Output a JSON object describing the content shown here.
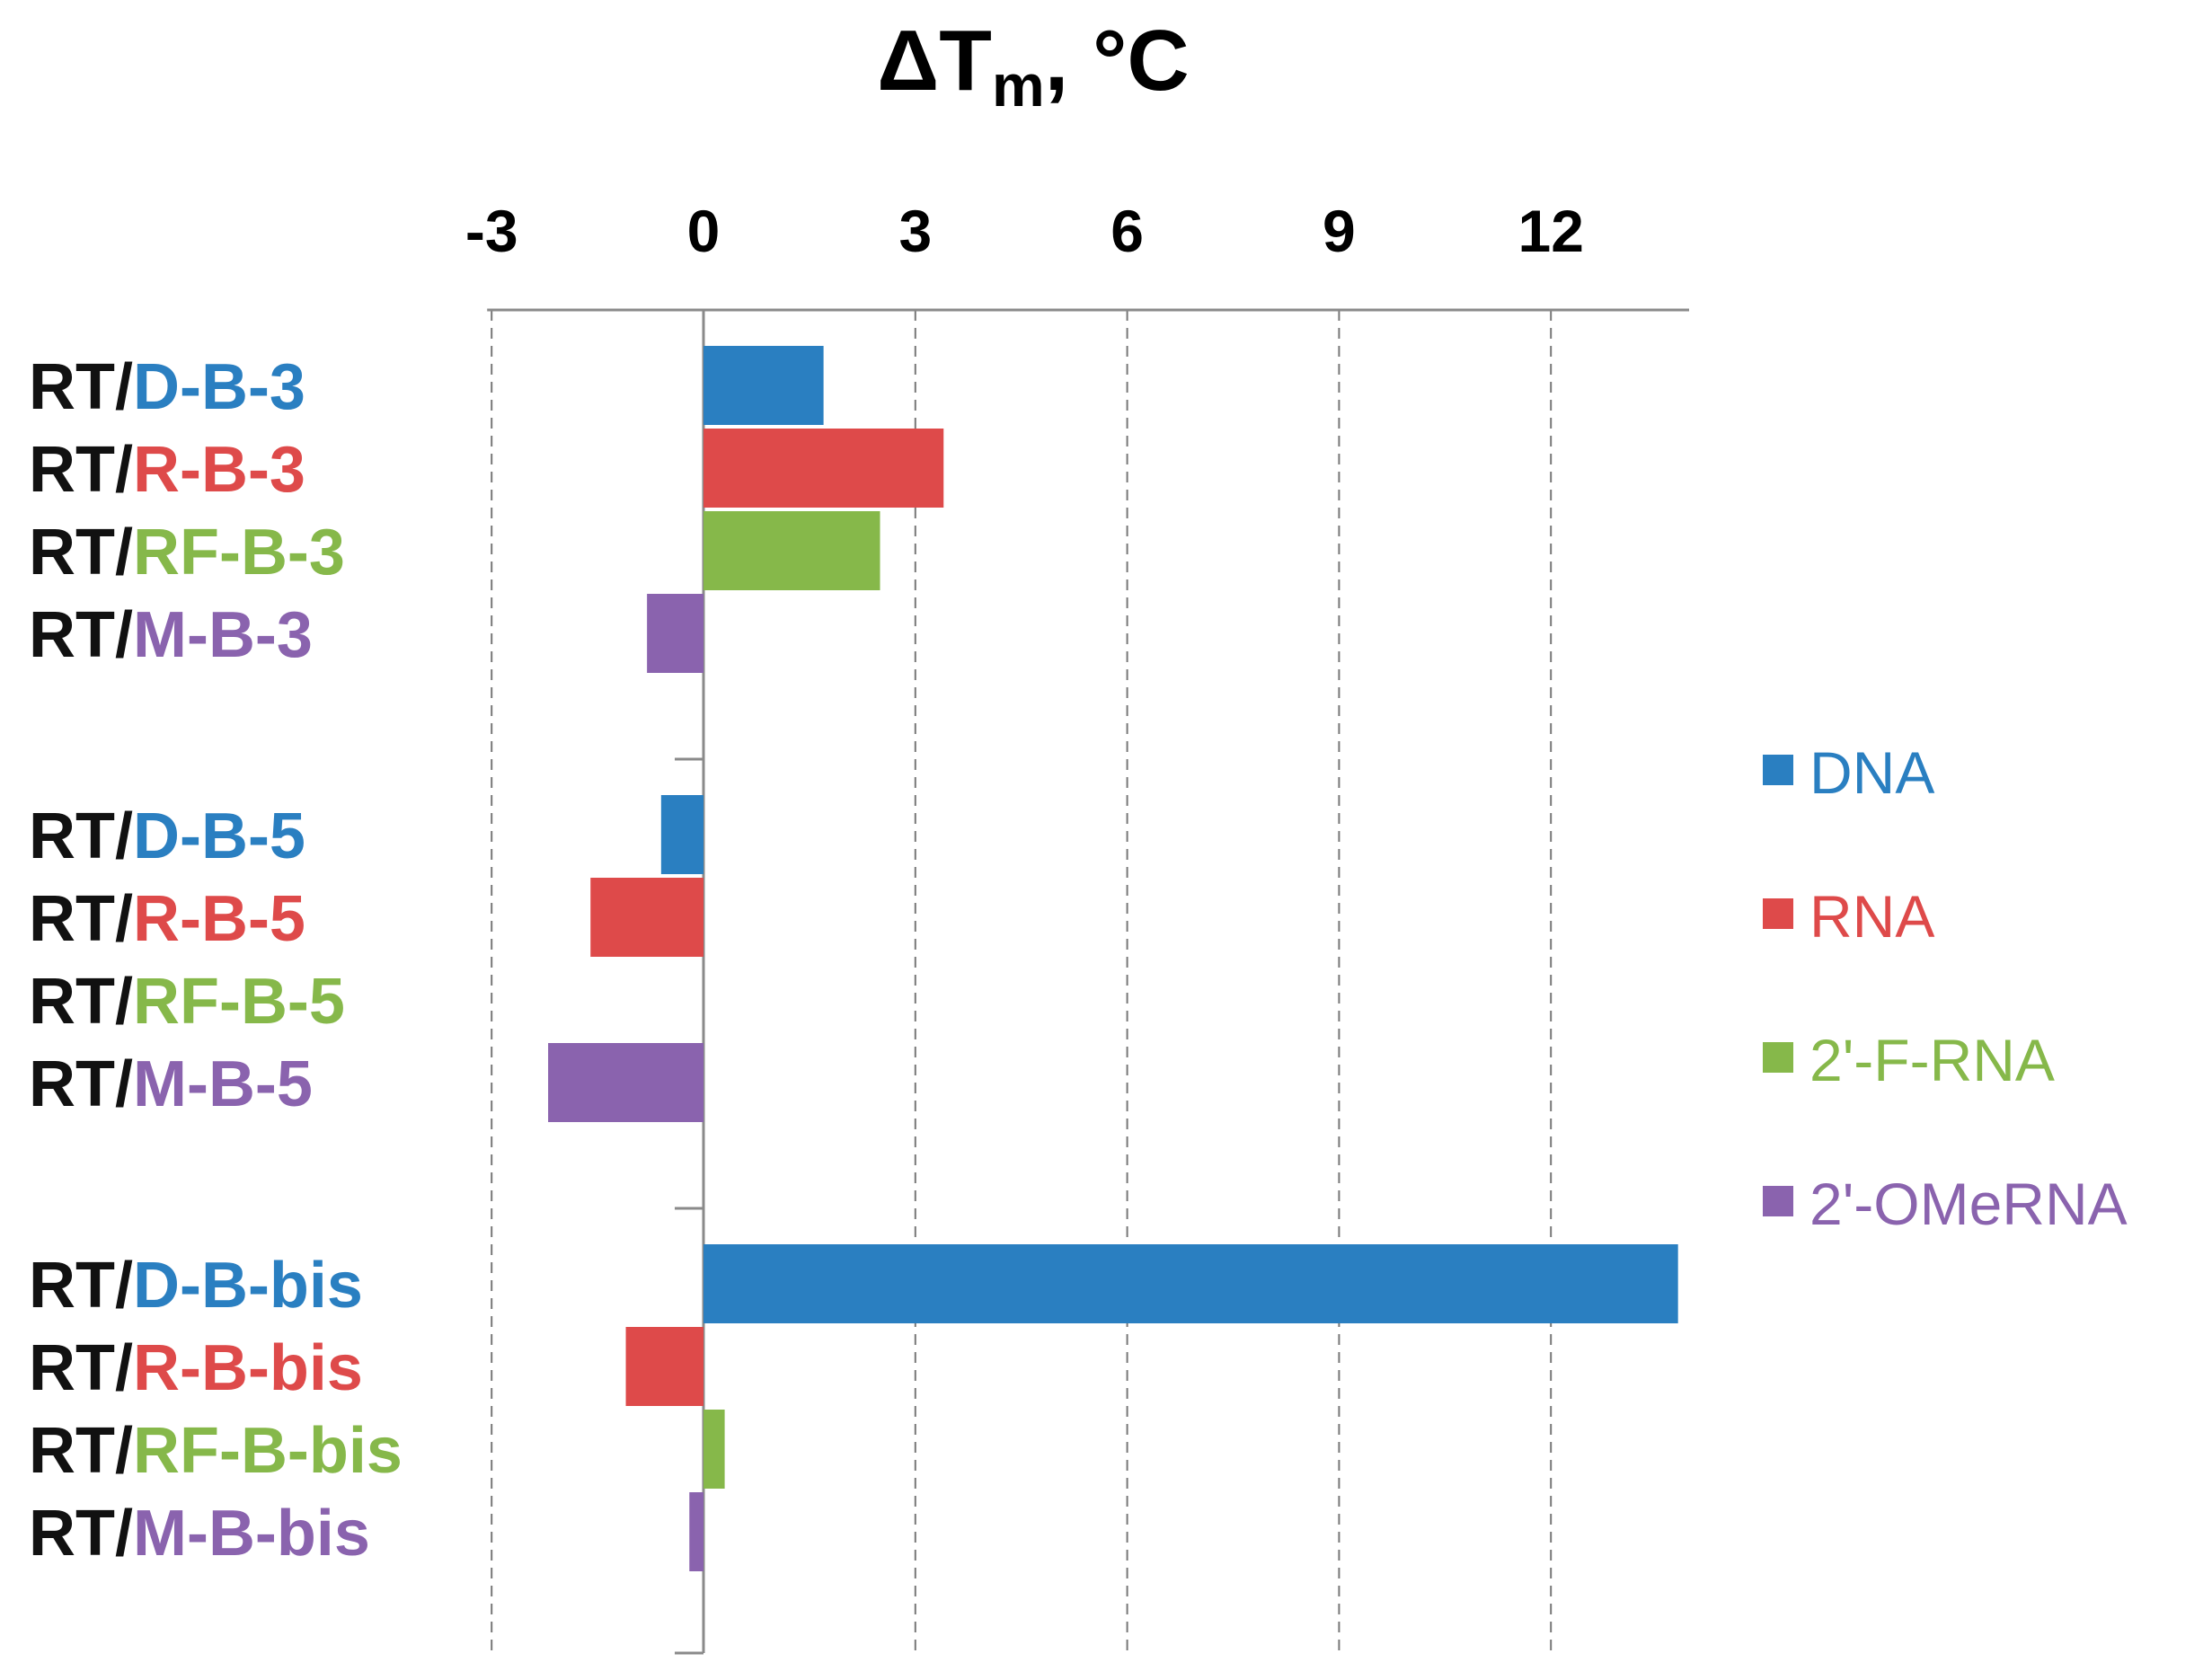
{
  "chart_data": {
    "type": "bar",
    "orientation": "horizontal",
    "title": {
      "main": "ΔT",
      "subscript": "m",
      "suffix": ", °C"
    },
    "xlim": [
      -3,
      14
    ],
    "xticks": [
      "-3",
      "0",
      "3",
      "6",
      "9",
      "12"
    ],
    "xtick_values": [
      -3,
      0,
      3,
      6,
      9,
      12
    ],
    "grid": true,
    "legend_position": "right",
    "series": [
      {
        "name": "DNA",
        "color": "#2a7fc1"
      },
      {
        "name": "RNA",
        "color": "#de4a4a"
      },
      {
        "name": "2'-F-RNA",
        "color": "#86b84a"
      },
      {
        "name": "2'-OMeRNA",
        "color": "#8a63ae"
      }
    ],
    "groups": [
      {
        "name": "B-3",
        "bars": [
          {
            "prefix": "RT/",
            "label": "D-B-3",
            "series": 0,
            "value": 1.7
          },
          {
            "prefix": "RT/",
            "label": "R-B-3",
            "series": 1,
            "value": 3.4
          },
          {
            "prefix": "RT/",
            "label": "RF-B-3",
            "series": 2,
            "value": 2.5
          },
          {
            "prefix": "RT/",
            "label": "M-B-3",
            "series": 3,
            "value": -0.8
          }
        ]
      },
      {
        "name": "B-5",
        "bars": [
          {
            "prefix": "RT/",
            "label": "D-B-5",
            "series": 0,
            "value": -0.6
          },
          {
            "prefix": "RT/",
            "label": "R-B-5",
            "series": 1,
            "value": -1.6
          },
          {
            "prefix": "RT/",
            "label": "RF-B-5",
            "series": 2,
            "value": 0
          },
          {
            "prefix": "RT/",
            "label": "M-B-5",
            "series": 3,
            "value": -2.2
          }
        ]
      },
      {
        "name": "B-bis",
        "bars": [
          {
            "prefix": "RT/",
            "label": "D-B-bis",
            "series": 0,
            "value": 13.8
          },
          {
            "prefix": "RT/",
            "label": "R-B-bis",
            "series": 1,
            "value": -1.1
          },
          {
            "prefix": "RT/",
            "label": "RF-B-bis",
            "series": 2,
            "value": 0.3
          },
          {
            "prefix": "RT/",
            "label": "M-B-bis",
            "series": 3,
            "value": -0.2
          }
        ]
      }
    ]
  }
}
